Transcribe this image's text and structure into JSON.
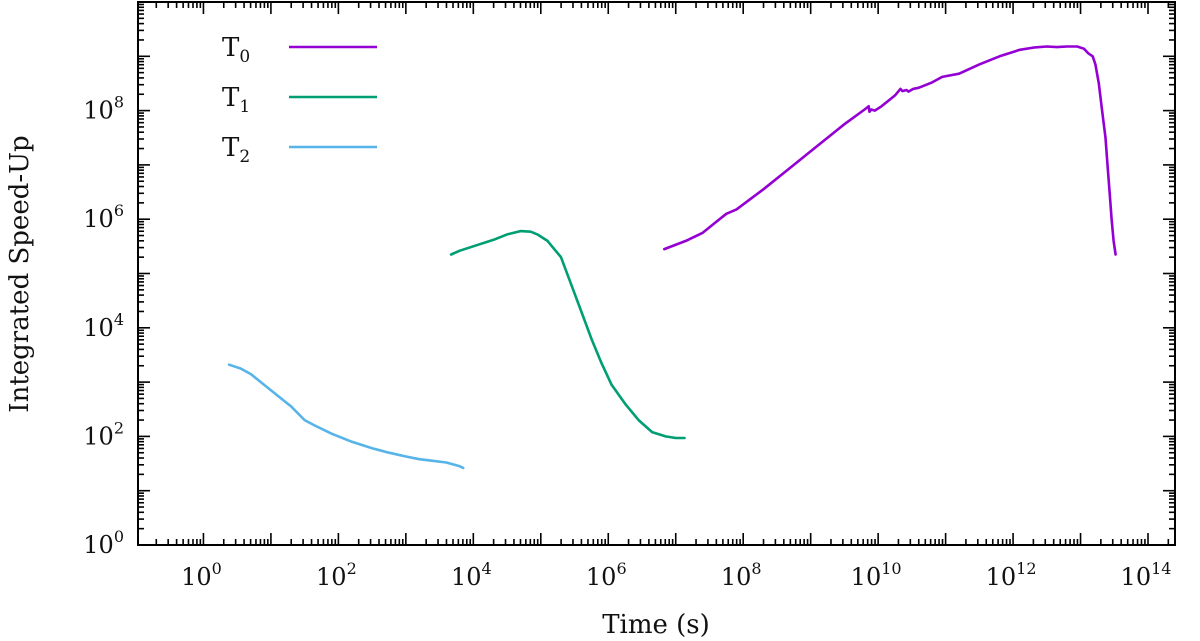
{
  "chart_data": {
    "type": "line",
    "title": "",
    "xlabel": "Time (s)",
    "ylabel": "Integrated Speed-Up",
    "xscale": "log",
    "yscale": "log",
    "xlim_log10": [
      -0.97,
      14.4
    ],
    "ylim_log10": [
      0,
      10
    ],
    "x_tick_exponents": [
      0,
      2,
      4,
      6,
      8,
      10,
      12,
      14
    ],
    "y_tick_exponents": [
      0,
      2,
      4,
      6,
      8
    ],
    "tick_base": "10",
    "legend_position": "top-left",
    "series": [
      {
        "name": "T",
        "subscript": "0",
        "color": "#9400d3",
        "points_log10": [
          [
            6.83,
            5.45
          ],
          [
            7.15,
            5.6
          ],
          [
            7.4,
            5.75
          ],
          [
            7.6,
            5.95
          ],
          [
            7.75,
            6.1
          ],
          [
            7.9,
            6.18
          ],
          [
            8.3,
            6.55
          ],
          [
            8.7,
            6.95
          ],
          [
            9.1,
            7.35
          ],
          [
            9.5,
            7.75
          ],
          [
            9.8,
            8.02
          ],
          [
            9.86,
            8.08
          ],
          [
            9.87,
            7.98
          ],
          [
            9.9,
            8.02
          ],
          [
            9.95,
            8.0
          ],
          [
            10.05,
            8.08
          ],
          [
            10.25,
            8.28
          ],
          [
            10.33,
            8.4
          ],
          [
            10.36,
            8.36
          ],
          [
            10.42,
            8.38
          ],
          [
            10.45,
            8.35
          ],
          [
            10.52,
            8.4
          ],
          [
            10.6,
            8.42
          ],
          [
            10.8,
            8.52
          ],
          [
            10.95,
            8.62
          ],
          [
            11.2,
            8.68
          ],
          [
            11.5,
            8.85
          ],
          [
            11.8,
            9.0
          ],
          [
            12.1,
            9.12
          ],
          [
            12.3,
            9.16
          ],
          [
            12.5,
            9.18
          ],
          [
            12.65,
            9.17
          ],
          [
            12.8,
            9.18
          ],
          [
            12.95,
            9.18
          ],
          [
            13.05,
            9.14
          ],
          [
            13.12,
            9.05
          ],
          [
            13.18,
            9.0
          ],
          [
            13.22,
            8.85
          ],
          [
            13.27,
            8.5
          ],
          [
            13.32,
            8.0
          ],
          [
            13.37,
            7.5
          ],
          [
            13.4,
            7.0
          ],
          [
            13.43,
            6.5
          ],
          [
            13.46,
            6.0
          ],
          [
            13.49,
            5.6
          ],
          [
            13.52,
            5.35
          ]
        ]
      },
      {
        "name": "T",
        "subscript": "1",
        "color": "#009e73",
        "points_log10": [
          [
            3.67,
            5.35
          ],
          [
            3.8,
            5.42
          ],
          [
            4.0,
            5.5
          ],
          [
            4.3,
            5.62
          ],
          [
            4.5,
            5.72
          ],
          [
            4.7,
            5.78
          ],
          [
            4.85,
            5.77
          ],
          [
            4.95,
            5.72
          ],
          [
            5.1,
            5.6
          ],
          [
            5.3,
            5.3
          ],
          [
            5.45,
            4.8
          ],
          [
            5.6,
            4.3
          ],
          [
            5.75,
            3.8
          ],
          [
            5.9,
            3.35
          ],
          [
            6.05,
            2.95
          ],
          [
            6.25,
            2.6
          ],
          [
            6.45,
            2.3
          ],
          [
            6.65,
            2.08
          ],
          [
            6.85,
            2.0
          ],
          [
            7.0,
            1.97
          ],
          [
            7.13,
            1.97
          ]
        ]
      },
      {
        "name": "T",
        "subscript": "2",
        "color": "#56b4e9",
        "points_log10": [
          [
            0.38,
            3.32
          ],
          [
            0.55,
            3.25
          ],
          [
            0.7,
            3.15
          ],
          [
            0.85,
            3.0
          ],
          [
            1.05,
            2.8
          ],
          [
            1.3,
            2.55
          ],
          [
            1.5,
            2.3
          ],
          [
            1.65,
            2.2
          ],
          [
            1.9,
            2.05
          ],
          [
            2.2,
            1.9
          ],
          [
            2.5,
            1.78
          ],
          [
            2.75,
            1.7
          ],
          [
            3.0,
            1.63
          ],
          [
            3.2,
            1.58
          ],
          [
            3.4,
            1.55
          ],
          [
            3.6,
            1.52
          ],
          [
            3.8,
            1.45
          ],
          [
            3.85,
            1.42
          ]
        ]
      }
    ]
  }
}
